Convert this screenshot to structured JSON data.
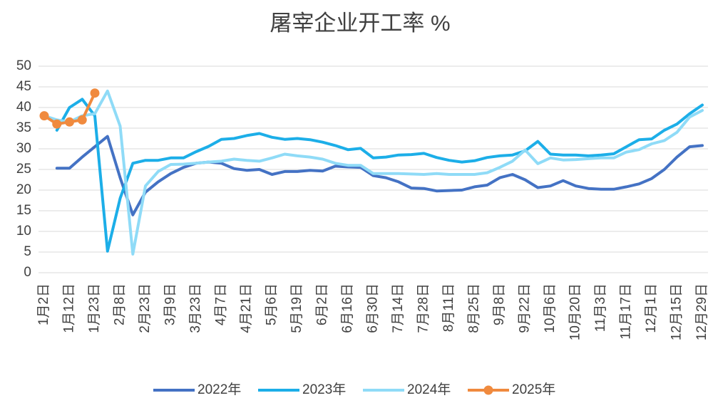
{
  "chart_data": {
    "type": "line",
    "title": "屠宰企业开工率  %",
    "categories": [
      "1月2日",
      null,
      "1月12日",
      null,
      "1月23日",
      null,
      "2月8日",
      null,
      "2月23日",
      null,
      "3月9日",
      null,
      "3月23日",
      null,
      "4月7日",
      null,
      "4月21日",
      null,
      "5月6日",
      null,
      "5月19日",
      null,
      "6月2日",
      null,
      "6月16日",
      null,
      "6月30日",
      null,
      "7月14日",
      null,
      "7月28日",
      null,
      "8月11日",
      null,
      "8月25日",
      null,
      "9月8日",
      null,
      "9月22日",
      null,
      "10月6日",
      null,
      "10月20日",
      null,
      "11月3日",
      null,
      "11月17日",
      null,
      "12月1日",
      null,
      "12月15日",
      null,
      "12月29日"
    ],
    "series": [
      {
        "name": "2022年",
        "color": "#4472c4",
        "values": [
          null,
          25.3,
          25.3,
          28,
          30.5,
          33,
          23,
          14,
          19.5,
          22,
          24,
          25.5,
          26.5,
          26.8,
          26.5,
          25.2,
          24.8,
          25,
          23.8,
          24.5,
          24.5,
          24.8,
          24.6,
          25.8,
          25.6,
          25.5,
          23.5,
          23,
          22,
          20.5,
          20.4,
          19.8,
          19.9,
          20,
          20.8,
          21.2,
          23,
          23.8,
          22.5,
          20.6,
          21,
          22.3,
          21,
          20.4,
          20.2,
          20.2,
          20.8,
          21.5,
          22.8,
          25,
          28,
          30.5,
          30.8
        ]
      },
      {
        "name": "2023年",
        "color": "#1caee8",
        "values": [
          null,
          34.5,
          40,
          42,
          38,
          5.2,
          18,
          26.5,
          27.2,
          27.2,
          27.8,
          27.8,
          29.3,
          30.6,
          32.3,
          32.5,
          33.2,
          33.7,
          32.8,
          32.3,
          32.5,
          32.2,
          31.6,
          30.8,
          29.8,
          30.1,
          27.8,
          28,
          28.5,
          28.6,
          28.9,
          27.9,
          27.2,
          26.8,
          27.1,
          27.9,
          28.3,
          28.5,
          29.5,
          31.8,
          28.7,
          28.5,
          28.5,
          28.3,
          28.5,
          28.8,
          30.5,
          32.2,
          32.4,
          34.5,
          36,
          38.5,
          40.6
        ]
      },
      {
        "name": "2024年",
        "color": "#8fdbf7",
        "values": [
          38,
          37,
          36.5,
          38,
          38.5,
          44,
          35.5,
          4.5,
          21,
          24.5,
          26.2,
          26.3,
          26.5,
          26.8,
          27,
          27.5,
          27.2,
          27,
          27.8,
          28.7,
          28.3,
          28,
          27.5,
          26.5,
          26,
          26,
          24,
          24,
          24,
          23.9,
          23.8,
          24,
          23.8,
          23.8,
          23.8,
          24.2,
          25.5,
          27,
          29.7,
          26.4,
          27.8,
          27.3,
          27.4,
          27.6,
          27.8,
          27.8,
          29.2,
          29.8,
          31.2,
          32,
          34,
          37.7,
          39.3
        ]
      },
      {
        "name": "2025年",
        "color": "#f08a3e",
        "markers": true,
        "values": [
          38,
          36,
          36.5,
          37,
          43.5,
          null,
          null,
          null,
          null,
          null,
          null,
          null,
          null,
          null,
          null,
          null,
          null,
          null,
          null,
          null,
          null,
          null,
          null,
          null,
          null,
          null,
          null,
          null,
          null,
          null,
          null,
          null,
          null,
          null,
          null,
          null,
          null,
          null,
          null,
          null,
          null,
          null,
          null,
          null,
          null,
          null,
          null,
          null,
          null,
          null,
          null,
          null,
          null
        ]
      }
    ],
    "ylim": [
      0,
      50
    ],
    "yticks": [
      0,
      5,
      10,
      15,
      20,
      25,
      30,
      35,
      40,
      45,
      50
    ],
    "grid": true
  }
}
